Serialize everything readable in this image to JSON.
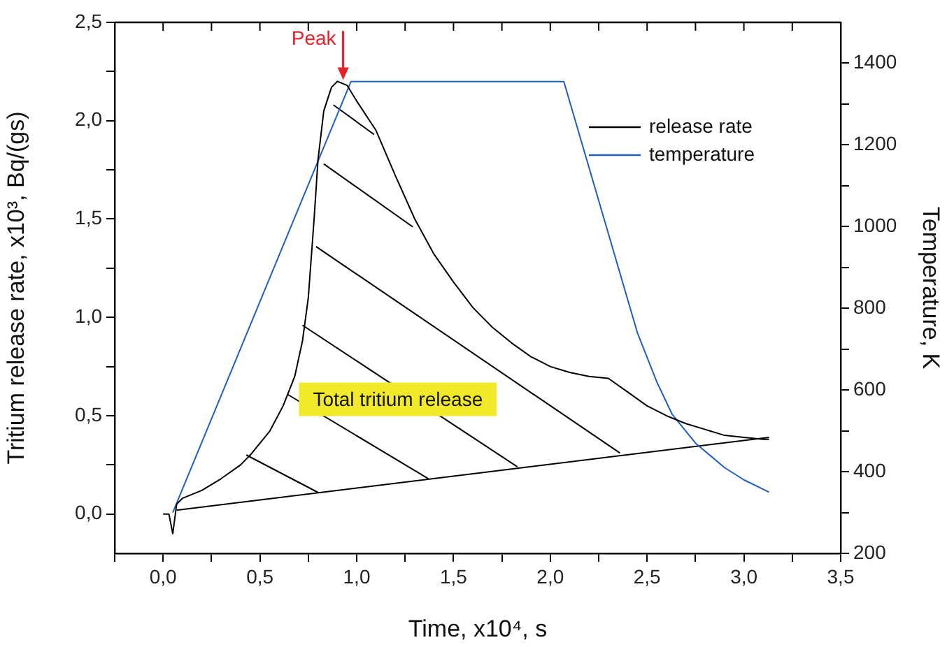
{
  "chart_data": {
    "type": "line",
    "xlabel": "Time, x10⁴, s",
    "ylabel": "Tritium release rate, x10³, Bq/(gs)",
    "y2label": "Temperature, K",
    "xlim": [
      -0.25,
      3.5
    ],
    "xticks": [
      {
        "value": -0.25,
        "label": null
      },
      {
        "value": 0,
        "label": "0,0"
      },
      {
        "value": 0.25,
        "label": null
      },
      {
        "value": 0.5,
        "label": "0,5"
      },
      {
        "value": 0.75,
        "label": null
      },
      {
        "value": 1,
        "label": "1,0"
      },
      {
        "value": 1.25,
        "label": null
      },
      {
        "value": 1.5,
        "label": "1,5"
      },
      {
        "value": 1.75,
        "label": null
      },
      {
        "value": 2,
        "label": "2,0"
      },
      {
        "value": 2.25,
        "label": null
      },
      {
        "value": 2.5,
        "label": "2,5"
      },
      {
        "value": 2.75,
        "label": null
      },
      {
        "value": 3,
        "label": "3,0"
      },
      {
        "value": 3.25,
        "label": null
      },
      {
        "value": 3.5,
        "label": "3,5"
      }
    ],
    "ylim": [
      -0.2,
      2.5
    ],
    "yticks": [
      {
        "value": 0,
        "label": "0,0"
      },
      {
        "value": 0.25,
        "label": null
      },
      {
        "value": 0.5,
        "label": "0,5"
      },
      {
        "value": 0.75,
        "label": null
      },
      {
        "value": 1,
        "label": "1,0"
      },
      {
        "value": 1.25,
        "label": null
      },
      {
        "value": 1.5,
        "label": "1,5"
      },
      {
        "value": 1.75,
        "label": null
      },
      {
        "value": 2,
        "label": "2,0"
      },
      {
        "value": 2.25,
        "label": null
      },
      {
        "value": 2.5,
        "label": "2,5"
      }
    ],
    "y2lim": [
      200,
      1500
    ],
    "y2ticks": [
      200,
      {
        "value": 300,
        "label": null
      },
      400,
      {
        "value": 500,
        "label": null
      },
      600,
      {
        "value": 700,
        "label": null
      },
      800,
      {
        "value": 900,
        "label": null
      },
      1000,
      {
        "value": 1100,
        "label": null
      },
      1200,
      {
        "value": 1300,
        "label": null
      },
      1400
    ],
    "grid": false,
    "legend": "top right",
    "marker": "none",
    "line_style": "solid",
    "series": [
      {
        "name": "release rate",
        "color": "#000000",
        "x": [
          0.0,
          0.03,
          0.05,
          0.07,
          0.1,
          0.2,
          0.3,
          0.4,
          0.45,
          0.55,
          0.62,
          0.68,
          0.72,
          0.75,
          0.78,
          0.8,
          0.83,
          0.87,
          0.9,
          0.95,
          1.0,
          1.1,
          1.2,
          1.3,
          1.4,
          1.5,
          1.6,
          1.7,
          1.8,
          1.9,
          2.0,
          2.1,
          2.2,
          2.3,
          2.4,
          2.5,
          2.6,
          2.7,
          2.8,
          2.9,
          3.0,
          3.1,
          3.13
        ],
        "values": [
          0.0,
          0.0,
          -0.1,
          0.05,
          0.08,
          0.12,
          0.18,
          0.25,
          0.3,
          0.42,
          0.55,
          0.7,
          0.88,
          1.1,
          1.5,
          1.8,
          2.05,
          2.17,
          2.2,
          2.18,
          2.1,
          1.95,
          1.72,
          1.5,
          1.32,
          1.18,
          1.05,
          0.95,
          0.87,
          0.8,
          0.75,
          0.72,
          0.7,
          0.69,
          0.62,
          0.55,
          0.5,
          0.46,
          0.43,
          0.4,
          0.39,
          0.38,
          0.38
        ]
      },
      {
        "name": "temperature",
        "color": "#1f5fbf",
        "axis": "y2",
        "x": [
          0.05,
          0.97,
          2.07,
          2.45,
          2.55,
          2.63,
          2.75,
          2.9,
          3.0,
          3.13
        ],
        "values": [
          300,
          1355,
          1355,
          740,
          620,
          540,
          470,
          410,
          380,
          350
        ]
      },
      {
        "color": "#000000",
        "x": [
          0.07,
          3.13
        ],
        "values": [
          0.02,
          0.39
        ]
      },
      {
        "color": "#000000",
        "x": [
          0.43,
          0.8
        ],
        "values": [
          0.3,
          0.11
        ]
      },
      {
        "color": "#000000",
        "x": [
          0.64,
          1.37
        ],
        "values": [
          0.61,
          0.18
        ]
      },
      {
        "color": "#000000",
        "x": [
          0.72,
          1.83
        ],
        "values": [
          0.96,
          0.24
        ]
      },
      {
        "color": "#000000",
        "x": [
          0.79,
          2.36
        ],
        "values": [
          1.36,
          0.31
        ]
      },
      {
        "color": "#000000",
        "x": [
          0.83,
          1.29
        ],
        "values": [
          1.78,
          1.46
        ]
      },
      {
        "color": "#000000",
        "x": [
          0.88,
          1.09
        ],
        "values": [
          2.08,
          1.93
        ]
      }
    ],
    "annotations": [
      {
        "text": "Peak",
        "x": 0.93,
        "y": 2.2
      },
      "Total tritium release"
    ]
  }
}
